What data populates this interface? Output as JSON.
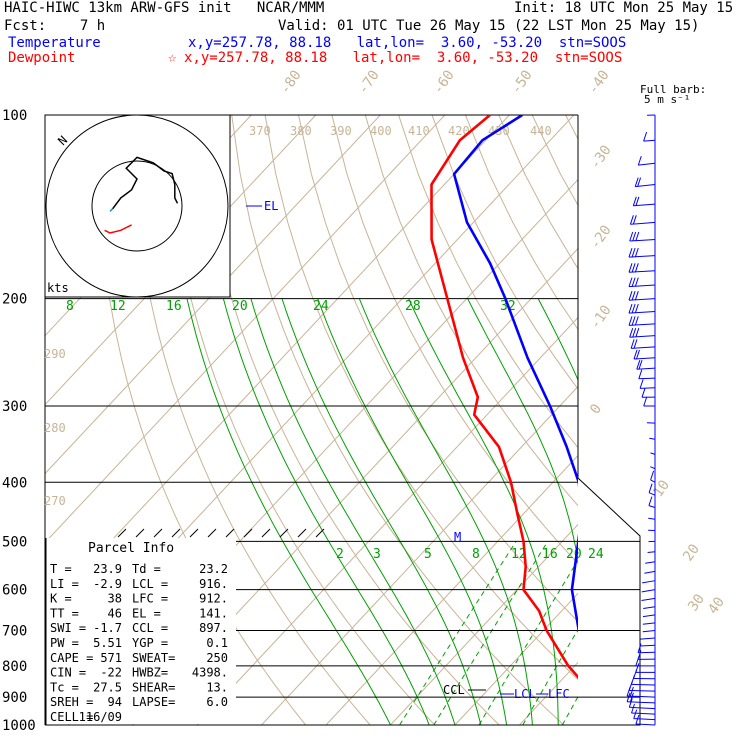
{
  "header": {
    "title_left": "HAIC-HIWC 13km ARW-GFS init   NCAR/MMM",
    "init": "Init: 18 UTC Mon 25 May 15",
    "fcst": "Fcst:    7 h",
    "valid": "Valid: 01 UTC Tue 26 May 15 (22 LST Mon 25 May 15)",
    "temp_label": "Temperature",
    "temp_loc": "x,y=257.78, 88.18   lat,lon=  3.60, -53.20  stn=SOOS",
    "dew_label": "Dewpoint",
    "dew_loc": "x,y=257.78, 88.18   lat,lon=  3.60, -53.20  stn=SOOS",
    "dew_marker": "☆"
  },
  "colors": {
    "temperature": "#0000ff",
    "dewpoint": "#ff0000",
    "isotherm": "#c8b496",
    "mixing_ratio": "#00a000",
    "adiabat": "#c8b496",
    "isobar": "#000000"
  },
  "wind_legend": {
    "title": "Full barb:",
    "unit": "5 m s⁻¹"
  },
  "hodograph": {
    "units_label": "kts"
  },
  "annotations": {
    "el": "EL",
    "ccl": "CCL",
    "lcl": "LCL",
    "lfc": "LFC",
    "m": "M"
  },
  "parcel_info": {
    "title": "Parcel Info",
    "rows": [
      [
        "T  =",
        "23.9",
        "Td =",
        "23.2"
      ],
      [
        "LI =",
        "-2.9",
        "LCL =",
        "916."
      ],
      [
        "K  =",
        "38",
        "LFC =",
        "912."
      ],
      [
        "TT =",
        "46",
        "EL =",
        "141."
      ],
      [
        "SWI =",
        "-1.7",
        "CCL =",
        "897."
      ],
      [
        "PW =",
        "5.51",
        "YGP =",
        "0.1"
      ],
      [
        "CAPE =",
        "571",
        "SWEAT=",
        "250"
      ],
      [
        "CIN =",
        "-22",
        "HWBZ=",
        "4398."
      ],
      [
        "Tc =",
        "27.5",
        "SHEAR=",
        "13."
      ],
      [
        "SREH =",
        "94",
        "LAPSE=",
        "6.0"
      ],
      [
        "CELL =",
        "116/09",
        "",
        ""
      ]
    ]
  },
  "chart_data": {
    "type": "line",
    "subtype": "skew-T log-p sounding",
    "y_axis": {
      "label": "",
      "unit": "hPa",
      "scale": "log",
      "ticks": [
        100,
        200,
        300,
        400,
        500,
        600,
        700,
        800,
        900,
        1000
      ],
      "range": [
        1000,
        100
      ]
    },
    "temperature_ticks": [
      "-80",
      "-70",
      "-60",
      "-50",
      "-40",
      "-30",
      "-20",
      "-10",
      "0",
      "10",
      "20",
      "30",
      "40"
    ],
    "isentrope_labels": [
      "370",
      "380",
      "390",
      "400",
      "410",
      "420",
      "430",
      "440",
      "290",
      "280",
      "270"
    ],
    "mixing_ratio_labels_upper": [
      "8",
      "12",
      "16",
      "20",
      "24",
      "28",
      "32"
    ],
    "mixing_ratio_labels_lower": [
      "2",
      "3",
      "5",
      "8",
      "12",
      "16",
      "20",
      "24"
    ],
    "series": [
      {
        "name": "Temperature",
        "color": "#0000ff",
        "points": [
          [
            1000,
            24.0
          ],
          [
            975,
            22.5
          ],
          [
            950,
            21.3
          ],
          [
            925,
            20.0
          ],
          [
            900,
            18.5
          ],
          [
            850,
            15.0
          ],
          [
            800,
            11.5
          ],
          [
            700,
            5.5
          ],
          [
            600,
            -1.5
          ],
          [
            500,
            -7.5
          ],
          [
            450,
            -11.0
          ],
          [
            400,
            -16.0
          ],
          [
            350,
            -23.0
          ],
          [
            300,
            -31.5
          ],
          [
            250,
            -42.0
          ],
          [
            200,
            -54.0
          ],
          [
            175,
            -61.5
          ],
          [
            150,
            -71.0
          ],
          [
            125,
            -80.0
          ],
          [
            110,
            -80.5
          ],
          [
            100,
            -78.0
          ]
        ]
      },
      {
        "name": "Dewpoint",
        "color": "#ff0000",
        "points": [
          [
            1000,
            23.2
          ],
          [
            975,
            22.0
          ],
          [
            950,
            20.5
          ],
          [
            925,
            19.2
          ],
          [
            900,
            17.5
          ],
          [
            850,
            13.5
          ],
          [
            800,
            9.0
          ],
          [
            700,
            0.5
          ],
          [
            650,
            -3.5
          ],
          [
            600,
            -9.0
          ],
          [
            550,
            -12.0
          ],
          [
            500,
            -16.0
          ],
          [
            450,
            -21.0
          ],
          [
            400,
            -26.5
          ],
          [
            350,
            -33.5
          ],
          [
            310,
            -42.0
          ],
          [
            290,
            -44.0
          ],
          [
            250,
            -52.0
          ],
          [
            200,
            -63.0
          ],
          [
            160,
            -74.0
          ],
          [
            130,
            -82.0
          ],
          [
            110,
            -84.0
          ],
          [
            100,
            -83.0
          ]
        ]
      }
    ],
    "wind_profile_kt": [
      [
        100,
        3,
        260
      ],
      [
        110,
        5,
        250
      ],
      [
        120,
        8,
        240
      ],
      [
        130,
        10,
        240
      ],
      [
        140,
        12,
        250
      ],
      [
        150,
        14,
        250
      ],
      [
        160,
        15,
        255
      ],
      [
        170,
        16,
        255
      ],
      [
        180,
        17,
        255
      ],
      [
        190,
        18,
        255
      ],
      [
        200,
        18,
        255
      ],
      [
        210,
        17,
        255
      ],
      [
        220,
        16,
        255
      ],
      [
        230,
        15,
        255
      ],
      [
        240,
        14,
        255
      ],
      [
        250,
        12,
        255
      ],
      [
        260,
        10,
        255
      ],
      [
        270,
        9,
        260
      ],
      [
        280,
        8,
        260
      ],
      [
        290,
        7,
        265
      ],
      [
        300,
        6,
        270
      ],
      [
        320,
        4,
        280
      ],
      [
        340,
        3,
        300
      ],
      [
        360,
        3,
        320
      ],
      [
        380,
        4,
        330
      ],
      [
        400,
        5,
        340
      ],
      [
        420,
        6,
        330
      ],
      [
        440,
        5,
        320
      ],
      [
        460,
        4,
        300
      ],
      [
        480,
        3,
        280
      ],
      [
        500,
        2,
        260
      ],
      [
        520,
        2,
        240
      ],
      [
        540,
        3,
        220
      ],
      [
        560,
        3,
        200
      ],
      [
        580,
        4,
        190
      ],
      [
        600,
        4,
        180
      ],
      [
        620,
        4,
        170
      ],
      [
        640,
        3,
        160
      ],
      [
        660,
        3,
        150
      ],
      [
        680,
        3,
        140
      ],
      [
        700,
        3,
        130
      ],
      [
        720,
        4,
        120
      ],
      [
        740,
        4,
        110
      ],
      [
        760,
        5,
        100
      ],
      [
        780,
        5,
        95
      ],
      [
        800,
        6,
        90
      ],
      [
        820,
        6,
        90
      ],
      [
        840,
        7,
        85
      ],
      [
        860,
        8,
        80
      ],
      [
        880,
        9,
        80
      ],
      [
        900,
        10,
        75
      ],
      [
        920,
        10,
        75
      ],
      [
        940,
        9,
        70
      ],
      [
        960,
        8,
        70
      ],
      [
        980,
        7,
        70
      ],
      [
        1000,
        6,
        70
      ]
    ],
    "hodograph_trace": {
      "segments": [
        {
          "color": "#ff0000",
          "points": [
            [
              -12,
              -9
            ],
            [
              -10,
              -10
            ],
            [
              -6,
              -9
            ],
            [
              -2,
              -7
            ]
          ]
        },
        {
          "color": "#00a0c0",
          "points": [
            [
              -10,
              -2
            ],
            [
              -9,
              -1
            ]
          ]
        },
        {
          "color": "#000000",
          "points": [
            [
              -9,
              -1
            ],
            [
              -6,
              3
            ],
            [
              -2,
              6
            ],
            [
              0,
              10
            ],
            [
              -4,
              14
            ],
            [
              0,
              18
            ],
            [
              6,
              16
            ],
            [
              10,
              13
            ],
            [
              13,
              12
            ],
            [
              14,
              8
            ],
            [
              14,
              3
            ],
            [
              15,
              1
            ]
          ]
        }
      ]
    },
    "grid": true,
    "legend": "top-left"
  }
}
